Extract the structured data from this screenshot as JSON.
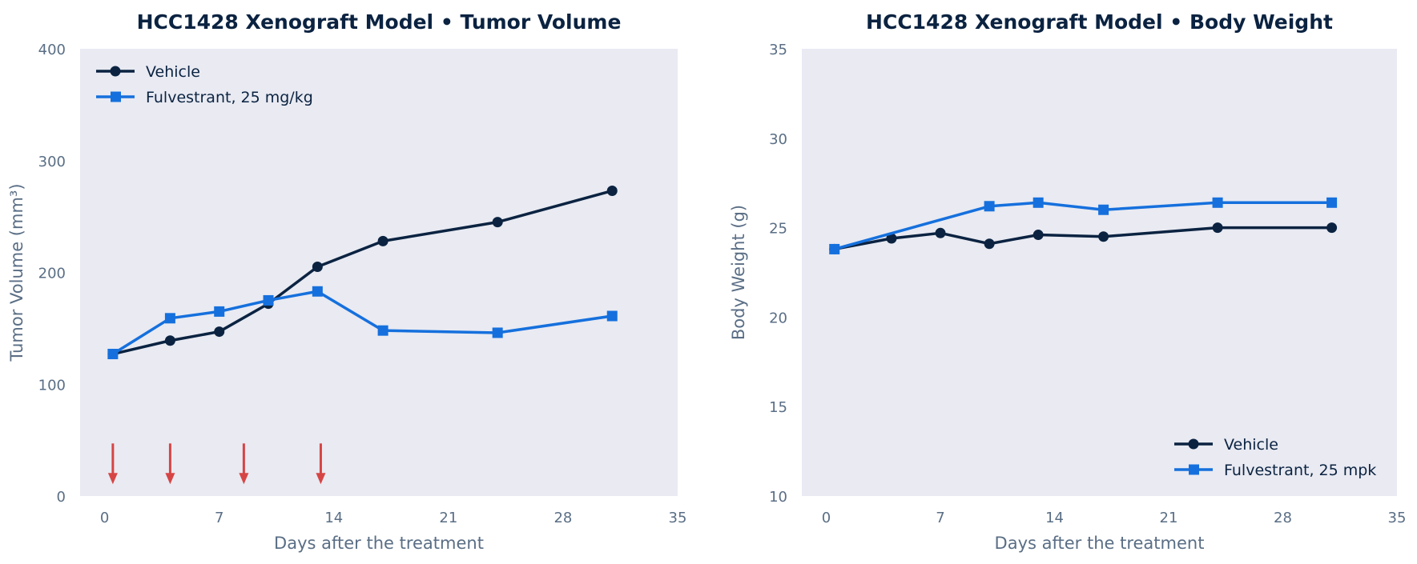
{
  "chart_data": [
    {
      "type": "line",
      "title": "HCC1428 Xenograft Model  •  Tumor Volume",
      "xlabel": "Days after the treatment",
      "ylabel": "Tumor Volume (mm³)",
      "xlim": [
        -1.5,
        35
      ],
      "ylim": [
        0,
        400
      ],
      "xticks": [
        0,
        7,
        14,
        21,
        28,
        35
      ],
      "yticks": [
        0,
        100,
        200,
        300,
        400
      ],
      "grid": false,
      "legend_position": "top-left",
      "background": "#e9eaf2",
      "series": [
        {
          "name": "Vehicle",
          "marker": "circle",
          "color": "#0b2341",
          "x": [
            0.5,
            4,
            7,
            10,
            13,
            17,
            24,
            31
          ],
          "y": [
            127,
            139,
            147,
            172,
            205,
            228,
            245,
            273
          ]
        },
        {
          "name": "Fulvestrant, 25 mg/kg",
          "marker": "square",
          "color": "#1570dd",
          "x": [
            0.5,
            4,
            7,
            10,
            13,
            17,
            24,
            31
          ],
          "y": [
            127,
            159,
            165,
            175,
            183,
            148,
            146,
            161
          ]
        }
      ],
      "dosing_arrows": {
        "days": [
          0.5,
          4,
          8.5,
          13.2
        ],
        "color": "#d64545",
        "from": 47,
        "to": 12
      }
    },
    {
      "type": "line",
      "title": "HCC1428 Xenograft Model  •  Body Weight",
      "xlabel": "Days after the treatment",
      "ylabel": "Body Weight (g)",
      "xlim": [
        -1.5,
        35
      ],
      "ylim": [
        10,
        35
      ],
      "xticks": [
        0,
        7,
        14,
        21,
        28,
        35
      ],
      "yticks": [
        10,
        15,
        20,
        25,
        30,
        35
      ],
      "grid": false,
      "legend_position": "bottom-right",
      "background": "#e9eaf2",
      "series": [
        {
          "name": "Vehicle",
          "marker": "circle",
          "color": "#0b2341",
          "x": [
            0.5,
            4,
            7,
            10,
            13,
            17,
            24,
            31
          ],
          "y": [
            23.8,
            24.4,
            24.7,
            24.1,
            24.6,
            24.5,
            25.0,
            25.0
          ]
        },
        {
          "name": "Fulvestrant, 25 mpk",
          "marker": "square",
          "color": "#1570dd",
          "x": [
            0.5,
            10,
            13,
            17,
            24,
            31
          ],
          "y": [
            23.8,
            26.2,
            26.4,
            26.0,
            26.4,
            26.4
          ]
        }
      ]
    }
  ]
}
